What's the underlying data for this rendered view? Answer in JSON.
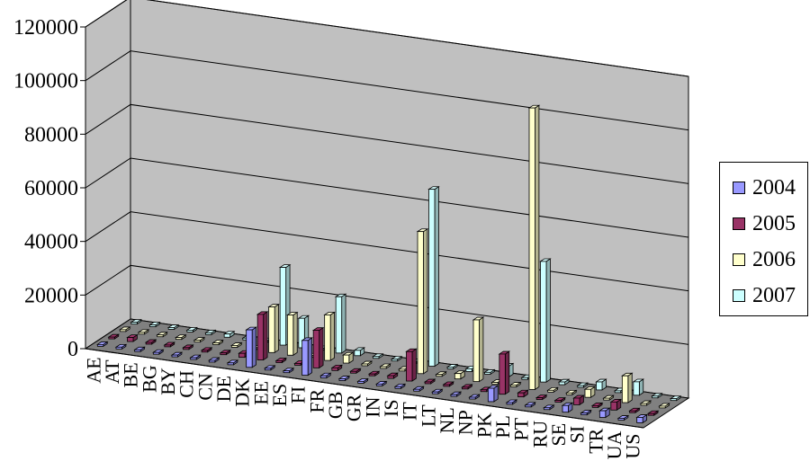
{
  "chart_data": {
    "type": "bar",
    "title": "",
    "xlabel": "",
    "ylabel": "",
    "ylim": [
      0,
      120000
    ],
    "yticks": [
      "0",
      "20000",
      "40000",
      "60000",
      "80000",
      "100000",
      "120000"
    ],
    "categories": [
      "AE",
      "AT",
      "BE",
      "BG",
      "BY",
      "CH",
      "CN",
      "DE",
      "DK",
      "EE",
      "ES",
      "FI",
      "FR",
      "GB",
      "GR",
      "IN",
      "IS",
      "IT",
      "LT",
      "NL",
      "NP",
      "PK",
      "PL",
      "PT",
      "RU",
      "SE",
      "SI",
      "TR",
      "UA",
      "US"
    ],
    "series": [
      {
        "name": "2004",
        "color": "#9999ff",
        "values": [
          300,
          0,
          0,
          0,
          300,
          0,
          0,
          700,
          14000,
          0,
          500,
          13000,
          800,
          0,
          0,
          0,
          0,
          0,
          0,
          0,
          0,
          5000,
          0,
          500,
          0,
          2500,
          0,
          2500,
          0,
          2000
        ]
      },
      {
        "name": "2005",
        "color": "#993366",
        "values": [
          0,
          1500,
          0,
          0,
          500,
          0,
          400,
          1500,
          17000,
          700,
          0,
          14000,
          1000,
          0,
          0,
          1000,
          11000,
          0,
          0,
          0,
          0,
          15000,
          1500,
          0,
          300,
          2500,
          0,
          3000,
          0,
          0
        ]
      },
      {
        "name": "2006",
        "color": "#ffffcc",
        "values": [
          300,
          0,
          0,
          0,
          0,
          0,
          300,
          0,
          17000,
          15000,
          0,
          17000,
          3000,
          0,
          0,
          0,
          53000,
          0,
          2000,
          23000,
          0,
          0,
          105000,
          0,
          0,
          3000,
          0,
          10000,
          0,
          300
        ]
      },
      {
        "name": "2007",
        "color": "#ccffff",
        "values": [
          0,
          0,
          0,
          0,
          0,
          1200,
          0,
          0,
          29000,
          11000,
          0,
          21000,
          2000,
          0,
          0,
          0,
          66000,
          0,
          1000,
          0,
          4000,
          0,
          45000,
          1000,
          0,
          3000,
          300,
          5000,
          0,
          300
        ]
      }
    ],
    "legend": "right",
    "grid": true
  }
}
